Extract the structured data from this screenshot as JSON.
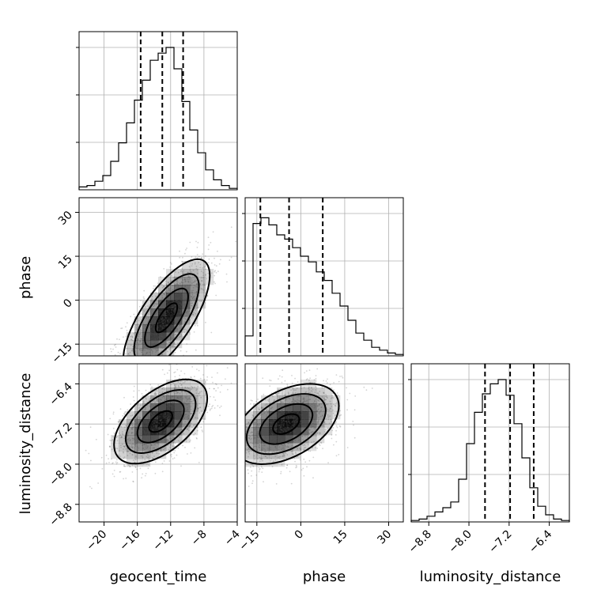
{
  "chart_data": {
    "type": "corner",
    "parameters": [
      "geocent_time",
      "phase",
      "luminosity_distance"
    ],
    "axis_labels": {
      "geocent_time": "geocent_time",
      "phase": "phase",
      "luminosity_distance": "luminosity_distance"
    },
    "ranges": {
      "geocent_time": [
        -23,
        -4
      ],
      "phase": [
        -19,
        35
      ],
      "luminosity_distance": [
        -9.15,
        -6.0
      ]
    },
    "ticks": {
      "geocent_time": [
        -20,
        -16,
        -12,
        -8,
        -4
      ],
      "phase": [
        -15,
        0,
        15,
        30
      ],
      "luminosity_distance": [
        -8.8,
        -8.0,
        -7.2,
        -6.4
      ]
    },
    "tick_labels": {
      "geocent_time": [
        "−20",
        "−16",
        "−12",
        "−8",
        "−4"
      ],
      "phase": [
        "−15",
        "0",
        "15",
        "30"
      ],
      "luminosity_distance": [
        "−8.8",
        "−8.0",
        "−7.2",
        "−6.4"
      ]
    },
    "histograms": {
      "geocent_time": [
        0.02,
        0.03,
        0.06,
        0.1,
        0.2,
        0.33,
        0.47,
        0.63,
        0.77,
        0.91,
        0.96,
        1.0,
        0.85,
        0.62,
        0.42,
        0.26,
        0.14,
        0.07,
        0.03,
        0.01
      ],
      "phase": [
        0.14,
        0.93,
        0.97,
        0.92,
        0.85,
        0.82,
        0.76,
        0.7,
        0.66,
        0.59,
        0.53,
        0.44,
        0.35,
        0.25,
        0.16,
        0.11,
        0.06,
        0.04,
        0.02,
        0.01
      ],
      "luminosity_distance": [
        0.01,
        0.02,
        0.04,
        0.07,
        0.1,
        0.14,
        0.3,
        0.55,
        0.77,
        0.9,
        0.97,
        1.0,
        0.89,
        0.69,
        0.45,
        0.24,
        0.11,
        0.05,
        0.02,
        0.01
      ]
    },
    "quantiles": {
      "geocent_time": [
        -15.6,
        -13.0,
        -10.5
      ],
      "phase": [
        -13.8,
        -4.0,
        7.5
      ],
      "luminosity_distance": [
        -7.68,
        -7.18,
        -6.71
      ]
    },
    "pairs": [
      {
        "x": "geocent_time",
        "y": "phase",
        "mean": [
          -12.5,
          -6.0
        ],
        "sd": [
          2.6,
          10.0
        ],
        "rho": 0.72
      },
      {
        "x": "geocent_time",
        "y": "luminosity_distance",
        "mean": [
          -13.2,
          -7.15
        ],
        "sd": [
          2.8,
          0.42
        ],
        "rho": 0.55
      },
      {
        "x": "phase",
        "y": "luminosity_distance",
        "mean": [
          -5.0,
          -7.2
        ],
        "sd": [
          9.0,
          0.4
        ],
        "rho": 0.45
      }
    ],
    "grid": true,
    "colors": {
      "line": "#000000",
      "grid": "#b0b0b0",
      "density": "#000000"
    }
  }
}
